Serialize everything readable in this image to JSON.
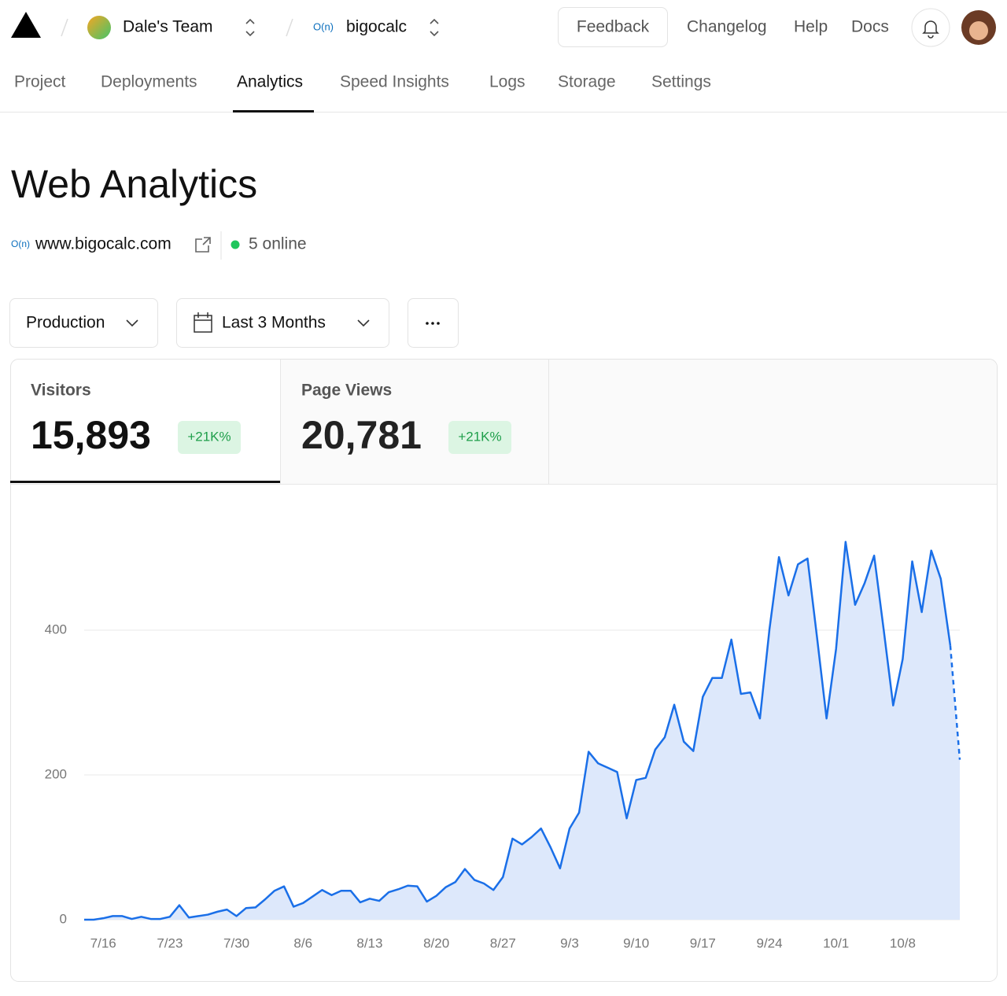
{
  "header": {
    "team": "Dale's Team",
    "project_logo": "O(n)",
    "project": "bigocalc",
    "feedback": "Feedback",
    "links": [
      "Changelog",
      "Help",
      "Docs"
    ]
  },
  "tabs": [
    "Project",
    "Deployments",
    "Analytics",
    "Speed Insights",
    "Logs",
    "Storage",
    "Settings"
  ],
  "page": {
    "title": "Web Analytics",
    "site_logo": "O(n)",
    "site": "www.bigocalc.com",
    "online": "5 online"
  },
  "filters": {
    "environment": "Production",
    "range": "Last 3 Months"
  },
  "metrics": [
    {
      "label": "Visitors",
      "value": "15,893",
      "change": "+21K%"
    },
    {
      "label": "Page Views",
      "value": "20,781",
      "change": "+21K%"
    }
  ],
  "chart_data": {
    "type": "area",
    "color": "#1a6fe8",
    "fill": "#dde8fb",
    "grid": true,
    "ylim": [
      0,
      575
    ],
    "yticks": [
      0,
      200,
      400
    ],
    "categories": [
      null,
      null,
      "7/16",
      null,
      null,
      null,
      null,
      null,
      null,
      "7/23",
      null,
      null,
      null,
      null,
      null,
      null,
      "7/30",
      null,
      null,
      null,
      null,
      null,
      null,
      "8/6",
      null,
      null,
      null,
      null,
      null,
      null,
      "8/13",
      null,
      null,
      null,
      null,
      null,
      null,
      "8/20",
      null,
      null,
      null,
      null,
      null,
      null,
      "8/27",
      null,
      null,
      null,
      null,
      null,
      null,
      "9/3",
      null,
      null,
      null,
      null,
      null,
      null,
      "9/10",
      null,
      null,
      null,
      null,
      null,
      null,
      "9/17",
      null,
      null,
      null,
      null,
      null,
      null,
      "9/24",
      null,
      null,
      null,
      null,
      null,
      null,
      "10/1",
      null,
      null,
      null,
      null,
      null,
      null,
      "10/8",
      null,
      null,
      null,
      null,
      null,
      null
    ],
    "values": [
      0,
      0,
      2,
      5,
      5,
      1,
      4,
      1,
      1,
      4,
      20,
      3,
      5,
      7,
      11,
      14,
      5,
      16,
      17,
      28,
      40,
      46,
      18,
      23,
      32,
      41,
      34,
      40,
      40,
      24,
      29,
      26,
      38,
      42,
      47,
      46,
      25,
      33,
      45,
      52,
      70,
      55,
      50,
      41,
      59,
      112,
      104,
      114,
      126,
      100,
      71,
      126,
      148,
      232,
      216,
      210,
      204,
      140,
      193,
      196,
      235,
      252,
      297,
      246,
      233,
      308,
      334,
      334,
      387,
      312,
      314,
      278,
      401,
      501,
      448,
      491,
      499,
      390,
      278,
      374,
      522,
      435,
      465,
      503,
      401,
      296,
      360,
      495,
      425,
      510,
      471,
      379,
      221
    ]
  }
}
